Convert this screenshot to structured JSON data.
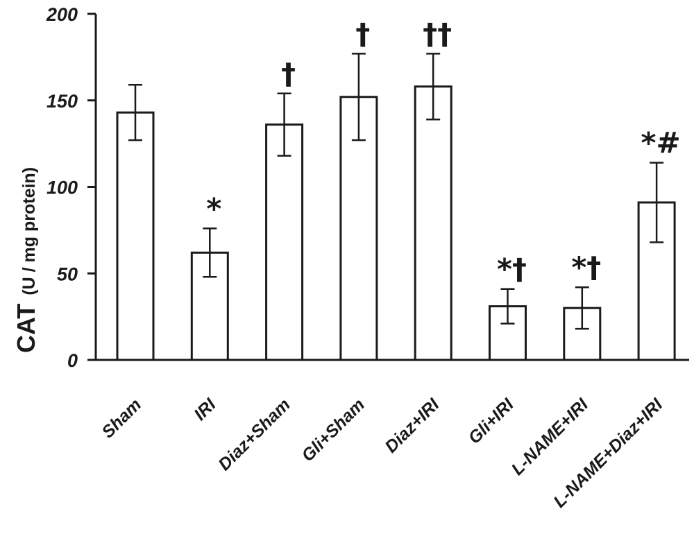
{
  "chart_data": {
    "type": "bar",
    "title": "",
    "xlabel": "",
    "ylabel": "CAT",
    "ylabel_unit": "(U / mg protein)",
    "ylim": [
      0,
      200
    ],
    "yticks": [
      0,
      50,
      100,
      150,
      200
    ],
    "grid": false,
    "categories": [
      "Sham",
      "IRI",
      "Diaz+Sham",
      "Gli+Sham",
      "Diaz+IRI",
      "Gli+IRI",
      "L-NAME+IRI",
      "L-NAME+Diaz+IRI"
    ],
    "values": [
      143,
      62,
      136,
      152,
      158,
      31,
      30,
      91
    ],
    "errors": [
      16,
      14,
      18,
      25,
      19,
      10,
      12,
      23
    ],
    "annotations": [
      "",
      "*",
      "†",
      "†",
      "††",
      "*†",
      "*†",
      "*#"
    ],
    "colors": {
      "bar_fill": "#ffffff",
      "stroke": "#1a1a1a"
    }
  }
}
